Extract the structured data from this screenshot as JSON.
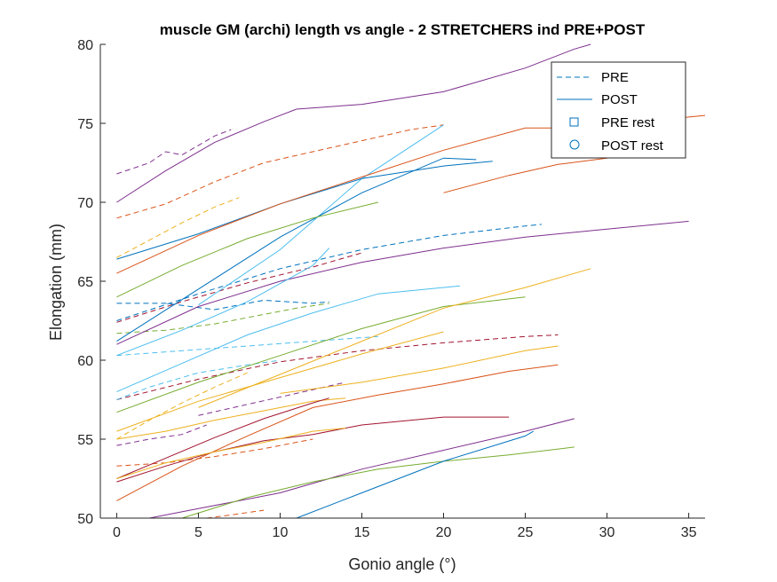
{
  "chart_data": {
    "type": "line",
    "title": "muscle GM (archi) length vs angle - 2 STRETCHERS ind PRE+POST",
    "xlabel": "Gonio angle (°)",
    "ylabel": "Elongation (mm)",
    "xlim": [
      -1,
      36
    ],
    "ylim": [
      50,
      80
    ],
    "xticks": [
      0,
      5,
      10,
      15,
      20,
      25,
      30,
      35
    ],
    "yticks": [
      50,
      55,
      60,
      65,
      70,
      75,
      80
    ],
    "grid": false,
    "legend": {
      "placement": "top-right",
      "entries": [
        {
          "label": "PRE",
          "style": "dashed-line"
        },
        {
          "label": "POST",
          "style": "solid-line"
        },
        {
          "label": "PRE rest",
          "style": "square-marker"
        },
        {
          "label": "POST rest",
          "style": "circle-marker"
        }
      ]
    },
    "series": [
      {
        "group": "PRE",
        "color": "#7E2F8E",
        "x": [
          0,
          2,
          3,
          4,
          5,
          6,
          7
        ],
        "y": [
          71.8,
          72.5,
          73.2,
          73.0,
          73.6,
          74.2,
          74.6
        ]
      },
      {
        "group": "PRE",
        "color": "#D95319",
        "x": [
          0,
          3,
          6,
          9,
          12,
          15,
          18,
          20
        ],
        "y": [
          69.0,
          69.9,
          71.3,
          72.5,
          73.2,
          73.9,
          74.6,
          74.9
        ]
      },
      {
        "group": "PRE",
        "color": "#EDB120",
        "x": [
          0,
          2,
          4,
          6,
          7.5
        ],
        "y": [
          66.5,
          67.6,
          68.7,
          69.7,
          70.3
        ]
      },
      {
        "group": "PRE",
        "color": "#0072BD",
        "x": [
          0,
          5,
          10,
          15,
          20,
          25,
          26
        ],
        "y": [
          62.5,
          64.2,
          65.8,
          67.0,
          67.9,
          68.5,
          68.6
        ]
      },
      {
        "group": "PRE",
        "color": "#0072BD",
        "x": [
          0,
          3,
          6,
          9,
          12,
          13
        ],
        "y": [
          63.6,
          63.6,
          63.2,
          63.8,
          63.6,
          63.7
        ]
      },
      {
        "group": "PRE",
        "color": "#A2142F",
        "x": [
          0,
          4,
          8,
          12,
          15
        ],
        "y": [
          62.4,
          63.7,
          64.9,
          65.9,
          66.8
        ]
      },
      {
        "group": "PRE",
        "color": "#77AC30",
        "x": [
          0,
          3,
          6,
          9,
          11,
          13
        ],
        "y": [
          61.7,
          61.9,
          62.3,
          62.9,
          63.3,
          63.6
        ]
      },
      {
        "group": "PRE",
        "color": "#4DBEEE",
        "x": [
          0,
          4,
          8,
          12,
          16
        ],
        "y": [
          60.3,
          60.6,
          60.9,
          61.2,
          61.5
        ]
      },
      {
        "group": "PRE",
        "color": "#A2142F",
        "x": [
          0,
          5,
          10,
          15,
          20,
          25,
          27
        ],
        "y": [
          57.5,
          58.8,
          59.9,
          60.6,
          61.1,
          61.5,
          61.6
        ]
      },
      {
        "group": "PRE",
        "color": "#4DBEEE",
        "x": [
          0,
          2,
          5,
          8,
          10
        ],
        "y": [
          57.5,
          58.3,
          59.2,
          59.7,
          60.0
        ]
      },
      {
        "group": "PRE",
        "color": "#7E2F8E",
        "x": [
          5,
          8,
          11,
          14
        ],
        "y": [
          56.5,
          57.2,
          57.9,
          58.6
        ]
      },
      {
        "group": "PRE",
        "color": "#EDB120",
        "x": [
          0,
          2,
          4,
          6,
          8
        ],
        "y": [
          55.0,
          56.2,
          57.3,
          58.3,
          59.2
        ]
      },
      {
        "group": "PRE",
        "color": "#7E2F8E",
        "x": [
          0,
          2,
          4,
          5.5
        ],
        "y": [
          54.6,
          55.0,
          55.3,
          55.9
        ]
      },
      {
        "group": "PRE",
        "color": "#D95319",
        "x": [
          0,
          3,
          6,
          9,
          12
        ],
        "y": [
          53.3,
          53.5,
          53.9,
          54.4,
          55.0
        ]
      },
      {
        "group": "PRE",
        "color": "#D95319",
        "x": [
          5.5,
          7,
          9
        ],
        "y": [
          50.0,
          50.2,
          50.5
        ]
      },
      {
        "group": "POST",
        "color": "#7E2F8E",
        "x": [
          0,
          3,
          6,
          9,
          11
        ],
        "y": [
          70.0,
          72.0,
          73.8,
          75.1,
          75.9
        ]
      },
      {
        "group": "POST",
        "color": "#7E2F8E",
        "x": [
          11,
          15,
          20,
          25,
          28,
          29
        ],
        "y": [
          75.9,
          76.2,
          77.0,
          78.5,
          79.7,
          80.0
        ]
      },
      {
        "group": "POST",
        "color": "#4DBEEE",
        "x": [
          5,
          10,
          15,
          20
        ],
        "y": [
          63.5,
          67.0,
          71.5,
          74.9
        ]
      },
      {
        "group": "POST",
        "color": "#0072BD",
        "x": [
          0,
          5,
          10,
          15,
          20,
          23
        ],
        "y": [
          66.4,
          68.0,
          69.9,
          71.5,
          72.3,
          72.6
        ]
      },
      {
        "group": "POST",
        "color": "#D95319",
        "x": [
          0,
          5,
          10,
          15,
          20,
          25,
          30,
          35,
          36
        ],
        "y": [
          65.5,
          67.9,
          69.9,
          71.6,
          73.3,
          74.7,
          74.7,
          75.4,
          75.5
        ]
      },
      {
        "group": "POST",
        "color": "#0072BD",
        "x": [
          0,
          5,
          10,
          15,
          20,
          22
        ],
        "y": [
          61.2,
          64.5,
          67.8,
          70.6,
          72.8,
          72.7
        ]
      },
      {
        "group": "POST",
        "color": "#77AC30",
        "x": [
          0,
          4,
          8,
          12,
          16
        ],
        "y": [
          64.0,
          66.0,
          67.7,
          69.0,
          70.0
        ]
      },
      {
        "group": "POST",
        "color": "#D95319",
        "x": [
          20,
          24,
          27,
          30
        ],
        "y": [
          70.6,
          71.7,
          72.4,
          72.8
        ]
      },
      {
        "group": "POST",
        "color": "#7E2F8E",
        "x": [
          0,
          5,
          10,
          15,
          20,
          25,
          30,
          35
        ],
        "y": [
          61.0,
          63.4,
          65.0,
          66.2,
          67.1,
          67.8,
          68.3,
          68.8
        ]
      },
      {
        "group": "POST",
        "color": "#4DBEEE",
        "x": [
          0,
          4,
          8,
          12,
          16,
          21
        ],
        "y": [
          58.0,
          59.8,
          61.6,
          63.0,
          64.2,
          64.7
        ]
      },
      {
        "group": "POST",
        "color": "#4DBEEE",
        "x": [
          0,
          4,
          8,
          12,
          13
        ],
        "y": [
          60.3,
          61.9,
          63.7,
          66.0,
          67.1
        ]
      },
      {
        "group": "POST",
        "color": "#77AC30",
        "x": [
          0,
          5,
          10,
          15,
          20,
          25
        ],
        "y": [
          56.7,
          58.6,
          60.3,
          62.0,
          63.4,
          64.0
        ]
      },
      {
        "group": "POST",
        "color": "#EDB120",
        "x": [
          5,
          10,
          15,
          20,
          25,
          29
        ],
        "y": [
          57.0,
          59.1,
          61.2,
          63.3,
          64.6,
          65.8
        ]
      },
      {
        "group": "POST",
        "color": "#EDB120",
        "x": [
          0,
          5,
          10,
          15,
          20
        ],
        "y": [
          55.5,
          57.4,
          58.9,
          60.4,
          61.8
        ]
      },
      {
        "group": "POST",
        "color": "#EDB120",
        "x": [
          10,
          15,
          20,
          25,
          27
        ],
        "y": [
          57.9,
          58.6,
          59.5,
          60.6,
          60.9
        ]
      },
      {
        "group": "POST",
        "color": "#D95319",
        "x": [
          0,
          4,
          8,
          12,
          16,
          20,
          24,
          27
        ],
        "y": [
          51.1,
          53.3,
          55.2,
          57.0,
          57.8,
          58.5,
          59.3,
          59.7
        ]
      },
      {
        "group": "POST",
        "color": "#EDB120",
        "x": [
          0,
          3,
          6,
          9,
          12,
          14
        ],
        "y": [
          55.0,
          55.5,
          56.2,
          56.8,
          57.4,
          57.6
        ]
      },
      {
        "group": "POST",
        "color": "#A2142F",
        "x": [
          0,
          3,
          6,
          9,
          12,
          15,
          20,
          24
        ],
        "y": [
          52.3,
          53.3,
          54.2,
          54.9,
          55.3,
          55.9,
          56.4,
          56.4
        ]
      },
      {
        "group": "POST",
        "color": "#A2142F",
        "x": [
          0,
          3,
          6,
          9,
          12,
          13
        ],
        "y": [
          52.5,
          53.8,
          55.1,
          56.3,
          57.3,
          57.6
        ]
      },
      {
        "group": "POST",
        "color": "#EDB120",
        "x": [
          0,
          3,
          6,
          9,
          12,
          14
        ],
        "y": [
          52.5,
          53.5,
          54.2,
          54.8,
          55.5,
          55.7
        ]
      },
      {
        "group": "POST",
        "color": "#7E2F8E",
        "x": [
          2,
          5,
          10,
          15,
          20,
          25,
          28
        ],
        "y": [
          50.0,
          50.6,
          51.6,
          53.1,
          54.3,
          55.5,
          56.3
        ]
      },
      {
        "group": "POST",
        "color": "#77AC30",
        "x": [
          4,
          8,
          12,
          16,
          20,
          24,
          28
        ],
        "y": [
          50.0,
          51.3,
          52.3,
          53.1,
          53.6,
          54.0,
          54.5
        ]
      },
      {
        "group": "POST",
        "color": "#0072BD",
        "x": [
          11,
          15,
          20,
          25,
          25.5
        ],
        "y": [
          50.0,
          51.6,
          53.6,
          55.2,
          55.5
        ]
      }
    ]
  }
}
